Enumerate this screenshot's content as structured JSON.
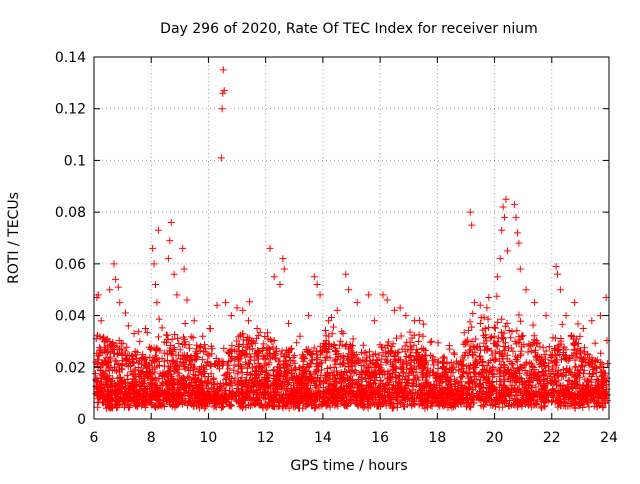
{
  "chart_data": {
    "type": "scatter",
    "title": "Day 296 of 2020, Rate Of TEC Index for receiver nium",
    "xlabel": "GPS time / hours",
    "ylabel": "ROTI / TECUs",
    "xlim": [
      6,
      24
    ],
    "ylim": [
      0,
      0.14
    ],
    "x_ticks": [
      6,
      8,
      10,
      12,
      14,
      16,
      18,
      20,
      22,
      24
    ],
    "x_tick_labels": [
      "6",
      "8",
      "10",
      "12",
      "14",
      "16",
      "18",
      "20",
      "22",
      "24"
    ],
    "y_ticks": [
      0,
      0.02,
      0.04,
      0.06,
      0.08,
      0.1,
      0.12,
      0.14
    ],
    "y_tick_labels": [
      "0",
      "0.02",
      "0.04",
      "0.06",
      "0.08",
      "0.1",
      "0.12",
      "0.14"
    ],
    "grid": true,
    "marker": "plus",
    "series": [
      {
        "name": "ROTI",
        "color": "#ff0000",
        "points": [
          [
            6.1,
            0.047
          ],
          [
            6.15,
            0.048
          ],
          [
            6.25,
            0.038
          ],
          [
            6.3,
            0.031
          ],
          [
            6.4,
            0.027
          ],
          [
            6.55,
            0.05
          ],
          [
            6.7,
            0.06
          ],
          [
            6.75,
            0.054
          ],
          [
            6.85,
            0.051
          ],
          [
            6.9,
            0.045
          ],
          [
            7.1,
            0.041
          ],
          [
            7.2,
            0.036
          ],
          [
            7.4,
            0.033
          ],
          [
            7.6,
            0.03
          ],
          [
            7.8,
            0.035
          ],
          [
            8.05,
            0.066
          ],
          [
            8.1,
            0.06
          ],
          [
            8.15,
            0.052
          ],
          [
            8.2,
            0.045
          ],
          [
            8.25,
            0.073
          ],
          [
            8.6,
            0.062
          ],
          [
            8.65,
            0.069
          ],
          [
            8.7,
            0.076
          ],
          [
            8.8,
            0.056
          ],
          [
            8.9,
            0.048
          ],
          [
            9.1,
            0.066
          ],
          [
            9.15,
            0.058
          ],
          [
            9.25,
            0.046
          ],
          [
            9.5,
            0.038
          ],
          [
            9.8,
            0.032
          ],
          [
            10.05,
            0.035
          ],
          [
            10.3,
            0.044
          ],
          [
            10.45,
            0.101
          ],
          [
            10.48,
            0.12
          ],
          [
            10.5,
            0.126
          ],
          [
            10.52,
            0.135
          ],
          [
            10.55,
            0.127
          ],
          [
            10.6,
            0.045
          ],
          [
            10.8,
            0.04
          ],
          [
            11.0,
            0.043
          ],
          [
            11.2,
            0.042
          ],
          [
            11.4,
            0.038
          ],
          [
            11.7,
            0.035
          ],
          [
            12.15,
            0.066
          ],
          [
            12.3,
            0.055
          ],
          [
            12.5,
            0.052
          ],
          [
            12.6,
            0.062
          ],
          [
            12.65,
            0.058
          ],
          [
            12.8,
            0.037
          ],
          [
            13.2,
            0.032
          ],
          [
            13.5,
            0.04
          ],
          [
            13.7,
            0.055
          ],
          [
            13.8,
            0.052
          ],
          [
            13.9,
            0.048
          ],
          [
            14.2,
            0.038
          ],
          [
            14.5,
            0.042
          ],
          [
            14.8,
            0.056
          ],
          [
            14.9,
            0.05
          ],
          [
            15.2,
            0.045
          ],
          [
            15.6,
            0.048
          ],
          [
            15.8,
            0.038
          ],
          [
            16.1,
            0.048
          ],
          [
            16.25,
            0.046
          ],
          [
            16.5,
            0.042
          ],
          [
            16.7,
            0.043
          ],
          [
            16.9,
            0.04
          ],
          [
            17.2,
            0.038
          ],
          [
            17.5,
            0.032
          ],
          [
            17.8,
            0.03
          ],
          [
            18.2,
            0.022
          ],
          [
            18.6,
            0.025
          ],
          [
            19.0,
            0.03
          ],
          [
            19.15,
            0.08
          ],
          [
            19.2,
            0.075
          ],
          [
            19.3,
            0.045
          ],
          [
            19.5,
            0.044
          ],
          [
            19.8,
            0.047
          ],
          [
            20.1,
            0.055
          ],
          [
            20.2,
            0.062
          ],
          [
            20.25,
            0.073
          ],
          [
            20.3,
            0.082
          ],
          [
            20.35,
            0.078
          ],
          [
            20.4,
            0.085
          ],
          [
            20.45,
            0.065
          ],
          [
            20.7,
            0.083
          ],
          [
            20.75,
            0.078
          ],
          [
            20.8,
            0.072
          ],
          [
            20.85,
            0.068
          ],
          [
            20.9,
            0.058
          ],
          [
            21.1,
            0.05
          ],
          [
            21.4,
            0.045
          ],
          [
            21.8,
            0.04
          ],
          [
            22.15,
            0.059
          ],
          [
            22.2,
            0.056
          ],
          [
            22.3,
            0.05
          ],
          [
            22.5,
            0.04
          ],
          [
            22.8,
            0.045
          ],
          [
            23.1,
            0.035
          ],
          [
            23.4,
            0.038
          ],
          [
            23.7,
            0.04
          ],
          [
            23.9,
            0.047
          ]
        ]
      }
    ]
  }
}
